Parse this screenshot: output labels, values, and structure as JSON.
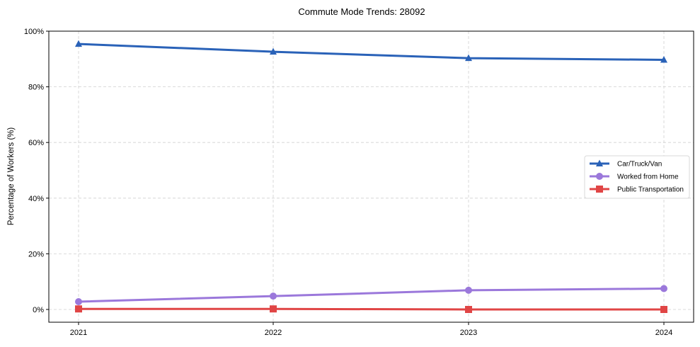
{
  "chart_data": {
    "type": "line",
    "title": "Commute Mode Trends: 28092",
    "xlabel": "",
    "ylabel": "Percentage of Workers (%)",
    "categories": [
      "2021",
      "2022",
      "2023",
      "2024"
    ],
    "ylim": [
      -5,
      100
    ],
    "yticks": [
      0,
      20,
      40,
      60,
      80,
      100
    ],
    "ytick_labels": [
      "0%",
      "20%",
      "40%",
      "60%",
      "80%",
      "100%"
    ],
    "grid": true,
    "legend_position": "center right",
    "series": [
      {
        "name": "Car/Truck/Van",
        "color": "#2a62b8",
        "marker": "triangle",
        "values": [
          95.4,
          92.6,
          90.3,
          89.7
        ]
      },
      {
        "name": "Worked from Home",
        "color": "#9b78db",
        "marker": "circle",
        "values": [
          2.8,
          4.8,
          6.9,
          7.5
        ]
      },
      {
        "name": "Public Transportation",
        "color": "#e04545",
        "marker": "square",
        "values": [
          0.2,
          0.2,
          0.0,
          0.0
        ]
      }
    ]
  }
}
